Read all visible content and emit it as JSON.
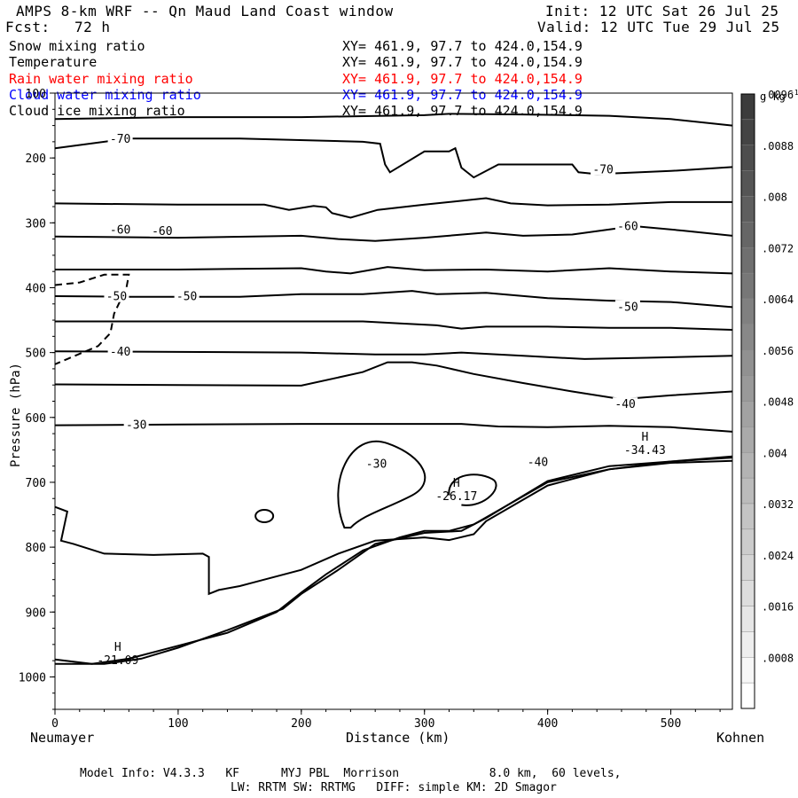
{
  "header": {
    "title": "AMPS 8-km WRF -- Qn Maud Land Coast window",
    "fcst_label": "Fcst:",
    "fcst_value": "72 h",
    "init": "Init: 12 UTC Sat 26 Jul 25",
    "valid": "Valid: 12 UTC Tue 29 Jul 25"
  },
  "fields": [
    {
      "name": "Snow mixing ratio",
      "xy": "XY= 461.9, 97.7 to 424.0,154.9",
      "color": "#000000"
    },
    {
      "name": "Temperature",
      "xy": "XY= 461.9, 97.7 to 424.0,154.9",
      "color": "#000000"
    },
    {
      "name": "Rain water mixing ratio",
      "xy": "XY= 461.9, 97.7 to 424.0,154.9",
      "color": "#ff0000"
    },
    {
      "name": "Cloud water mixing ratio",
      "xy": "XY= 461.9, 97.7 to 424.0,154.9",
      "color": "#0000ff"
    },
    {
      "name": "Cloud ice mixing ratio",
      "xy": "XY= 461.9, 97.7 to 424.0,154.9",
      "color": "#000000"
    }
  ],
  "footer": {
    "line1": "Model Info: V4.3.3   KF      MYJ PBL  Morrison             8.0 km,  60 levels,",
    "line2": "LW: RRTM SW: RRTMG   DIFF: simple KM: 2D Smagor"
  },
  "chart_data": {
    "type": "line",
    "title": "",
    "xlabel": "Distance (km)",
    "ylabel": "Pressure (hPa)",
    "xlim": [
      0,
      550
    ],
    "ylim": [
      1050,
      100
    ],
    "x_ticks": [
      0,
      100,
      200,
      300,
      400,
      500
    ],
    "y_ticks": [
      100,
      200,
      300,
      400,
      500,
      600,
      700,
      800,
      900,
      1000
    ],
    "x_endpoints": {
      "left": "Neumayer",
      "right": "Kohnen"
    },
    "colorbar": {
      "unit": "g kg",
      "unit_exp": "-1",
      "tick_labels": [
        ".0008",
        ".0016",
        ".0024",
        ".0032",
        ".004",
        ".0048",
        ".0056",
        ".0064",
        ".0072",
        ".008",
        ".0088",
        ".0096"
      ]
    },
    "contour_labels": [
      {
        "x": 53,
        "p": 171,
        "text": "-70"
      },
      {
        "x": 445,
        "p": 218,
        "text": "-70"
      },
      {
        "x": 53,
        "p": 311,
        "text": "-60"
      },
      {
        "x": 87,
        "p": 313,
        "text": "-60"
      },
      {
        "x": 465,
        "p": 306,
        "text": "-60"
      },
      {
        "x": 50,
        "p": 414,
        "text": "-50"
      },
      {
        "x": 107,
        "p": 414,
        "text": "-50"
      },
      {
        "x": 465,
        "p": 430,
        "text": "-50"
      },
      {
        "x": 53,
        "p": 499,
        "text": "-40"
      },
      {
        "x": 463,
        "p": 580,
        "text": "-40"
      },
      {
        "x": 66,
        "p": 612,
        "text": "-30"
      },
      {
        "x": 261,
        "p": 672,
        "text": "-30"
      },
      {
        "x": 392,
        "p": 669,
        "text": "-40"
      }
    ],
    "extrema": [
      {
        "type": "H",
        "x": 51,
        "p": 960,
        "value": "-21.09"
      },
      {
        "type": "H",
        "x": 326,
        "p": 707,
        "value": "-26.17"
      },
      {
        "type": "H",
        "x": 479,
        "p": 636,
        "value": "-34.43"
      }
    ],
    "isotherms": [
      {
        "level": -70,
        "points": [
          [
            0,
            185
          ],
          [
            60,
            170
          ],
          [
            150,
            170
          ],
          [
            250,
            175
          ],
          [
            264,
            178
          ],
          [
            268,
            210
          ],
          [
            272,
            222
          ],
          [
            300,
            190
          ],
          [
            320,
            190
          ],
          [
            325,
            185
          ],
          [
            330,
            215
          ],
          [
            340,
            230
          ],
          [
            360,
            210
          ],
          [
            380,
            210
          ],
          [
            420,
            210
          ],
          [
            425,
            222
          ],
          [
            440,
            225
          ],
          [
            500,
            220
          ],
          [
            550,
            214
          ]
        ]
      },
      {
        "level": -70,
        "points": [
          [
            0,
            140
          ],
          [
            100,
            137
          ],
          [
            200,
            137
          ],
          [
            300,
            134
          ],
          [
            320,
            132
          ],
          [
            380,
            133
          ],
          [
            450,
            135
          ],
          [
            500,
            140
          ],
          [
            550,
            150
          ]
        ]
      },
      {
        "level": -60,
        "points": [
          [
            0,
            270
          ],
          [
            100,
            272
          ],
          [
            170,
            272
          ],
          [
            190,
            280
          ],
          [
            210,
            274
          ],
          [
            220,
            276
          ],
          [
            225,
            285
          ],
          [
            240,
            292
          ],
          [
            262,
            280
          ],
          [
            300,
            272
          ],
          [
            350,
            262
          ],
          [
            370,
            270
          ],
          [
            400,
            273
          ],
          [
            450,
            272
          ],
          [
            500,
            268
          ],
          [
            550,
            268
          ]
        ]
      },
      {
        "level": -60,
        "points": [
          [
            0,
            321
          ],
          [
            100,
            323
          ],
          [
            200,
            320
          ],
          [
            230,
            325
          ],
          [
            260,
            328
          ],
          [
            300,
            323
          ],
          [
            350,
            315
          ],
          [
            380,
            320
          ],
          [
            420,
            318
          ],
          [
            470,
            305
          ],
          [
            510,
            312
          ],
          [
            550,
            320
          ]
        ]
      },
      {
        "level": -50,
        "points": [
          [
            0,
            372
          ],
          [
            100,
            372
          ],
          [
            200,
            370
          ],
          [
            220,
            375
          ],
          [
            240,
            378
          ],
          [
            270,
            368
          ],
          [
            300,
            373
          ],
          [
            350,
            372
          ],
          [
            400,
            375
          ],
          [
            450,
            370
          ],
          [
            500,
            375
          ],
          [
            550,
            378
          ]
        ]
      },
      {
        "level": -50,
        "points": [
          [
            0,
            413
          ],
          [
            60,
            414
          ],
          [
            150,
            414
          ],
          [
            200,
            410
          ],
          [
            250,
            410
          ],
          [
            290,
            405
          ],
          [
            310,
            410
          ],
          [
            350,
            408
          ],
          [
            400,
            416
          ],
          [
            450,
            420
          ],
          [
            500,
            422
          ],
          [
            550,
            430
          ]
        ]
      },
      {
        "level": -40,
        "points": [
          [
            0,
            452
          ],
          [
            100,
            452
          ],
          [
            200,
            452
          ],
          [
            250,
            452
          ],
          [
            280,
            455
          ],
          [
            310,
            458
          ],
          [
            330,
            463
          ],
          [
            350,
            460
          ],
          [
            400,
            460
          ],
          [
            450,
            462
          ],
          [
            500,
            462
          ],
          [
            550,
            465
          ]
        ]
      },
      {
        "level": -40,
        "points": [
          [
            0,
            498
          ],
          [
            100,
            499
          ],
          [
            200,
            500
          ],
          [
            260,
            503
          ],
          [
            300,
            503
          ],
          [
            330,
            500
          ],
          [
            380,
            505
          ],
          [
            430,
            510
          ],
          [
            480,
            508
          ],
          [
            550,
            505
          ]
        ]
      },
      {
        "level": -40,
        "points": [
          [
            0,
            549
          ],
          [
            100,
            550
          ],
          [
            200,
            551
          ],
          [
            250,
            530
          ],
          [
            270,
            515
          ],
          [
            290,
            515
          ],
          [
            310,
            520
          ],
          [
            340,
            533
          ],
          [
            380,
            547
          ],
          [
            420,
            560
          ],
          [
            460,
            572
          ],
          [
            500,
            566
          ],
          [
            550,
            560
          ]
        ]
      },
      {
        "level": -30,
        "points": [
          [
            0,
            612
          ],
          [
            100,
            611
          ],
          [
            200,
            610
          ],
          [
            270,
            610
          ],
          [
            330,
            610
          ],
          [
            360,
            614
          ],
          [
            400,
            615
          ],
          [
            450,
            613
          ],
          [
            500,
            615
          ],
          [
            550,
            622
          ]
        ]
      }
    ],
    "series_low": [
      {
        "level": -30,
        "points": [
          [
            0,
            738
          ],
          [
            10,
            745
          ],
          [
            5,
            790
          ],
          [
            15,
            795
          ],
          [
            40,
            810
          ],
          [
            80,
            812
          ],
          [
            120,
            810
          ],
          [
            125,
            815
          ],
          [
            125,
            872
          ],
          [
            133,
            866
          ],
          [
            150,
            860
          ],
          [
            160,
            855
          ],
          [
            200,
            835
          ],
          [
            230,
            810
          ],
          [
            260,
            790
          ],
          [
            300,
            785
          ],
          [
            320,
            789
          ],
          [
            340,
            780
          ],
          [
            350,
            760
          ],
          [
            400,
            705
          ],
          [
            450,
            680
          ],
          [
            500,
            670
          ],
          [
            550,
            667
          ]
        ]
      },
      {
        "level": -34.43,
        "points": [
          [
            0,
            973
          ],
          [
            30,
            980
          ],
          [
            60,
            972
          ],
          [
            100,
            952
          ],
          [
            140,
            932
          ],
          [
            180,
            900
          ],
          [
            200,
            870
          ],
          [
            220,
            842
          ],
          [
            250,
            805
          ],
          [
            280,
            785
          ],
          [
            300,
            775
          ],
          [
            320,
            775
          ],
          [
            340,
            765
          ],
          [
            400,
            700
          ],
          [
            450,
            680
          ],
          [
            500,
            668
          ],
          [
            550,
            660
          ]
        ]
      },
      {
        "level": -21.09,
        "points": [
          [
            0,
            980
          ],
          [
            40,
            980
          ],
          [
            70,
            972
          ],
          [
            100,
            955
          ],
          [
            140,
            928
          ],
          [
            185,
            895
          ],
          [
            200,
            872
          ],
          [
            230,
            835
          ],
          [
            260,
            795
          ],
          [
            300,
            778
          ],
          [
            330,
            775
          ],
          [
            350,
            755
          ],
          [
            400,
            698
          ],
          [
            450,
            675
          ],
          [
            500,
            668
          ],
          [
            550,
            662
          ]
        ]
      }
    ],
    "cloud_ice_dashed": [
      [
        [
          0,
          396
        ],
        [
          20,
          392
        ],
        [
          40,
          380
        ],
        [
          60,
          380
        ],
        [
          58,
          400
        ],
        [
          48,
          440
        ],
        [
          45,
          470
        ],
        [
          35,
          490
        ],
        [
          10,
          510
        ],
        [
          0,
          518
        ]
      ]
    ]
  }
}
